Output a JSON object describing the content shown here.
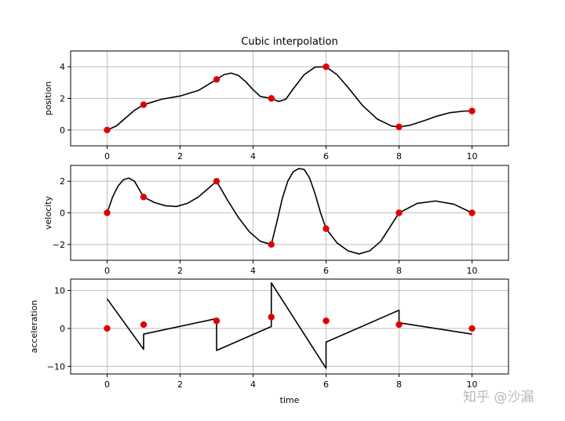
{
  "figure": {
    "title": "Cubic interpolation",
    "watermark": "知乎 @沙漏",
    "colors": {
      "line": "#000000",
      "marker": "#e00000",
      "grid": "#b0b0b0"
    }
  },
  "chart_data": [
    {
      "type": "line",
      "ylabel": "position",
      "xlim": [
        -1,
        11
      ],
      "ylim": [
        -1,
        5
      ],
      "xticks": [
        0,
        2,
        4,
        6,
        8,
        10
      ],
      "yticks": [
        0,
        2,
        4
      ],
      "grid": true,
      "points": {
        "x": [
          0,
          1,
          3,
          4.5,
          6,
          8,
          10
        ],
        "y": [
          0,
          1.6,
          3.2,
          2.0,
          4.0,
          0.2,
          1.2
        ]
      },
      "curve": {
        "x": [
          0,
          0.25,
          0.5,
          0.75,
          1,
          1.5,
          2,
          2.5,
          3,
          3.2,
          3.4,
          3.6,
          3.8,
          4,
          4.2,
          4.5,
          4.7,
          4.9,
          5.1,
          5.4,
          5.7,
          6,
          6.3,
          6.6,
          7,
          7.4,
          7.8,
          8,
          8.3,
          8.7,
          9,
          9.4,
          9.8,
          10
        ],
        "y": [
          0,
          0.25,
          0.75,
          1.25,
          1.6,
          1.95,
          2.15,
          2.5,
          3.2,
          3.5,
          3.6,
          3.45,
          3.05,
          2.55,
          2.12,
          2.0,
          1.8,
          1.95,
          2.6,
          3.5,
          3.98,
          4.0,
          3.5,
          2.7,
          1.55,
          0.7,
          0.25,
          0.2,
          0.3,
          0.6,
          0.85,
          1.1,
          1.2,
          1.2
        ]
      }
    },
    {
      "type": "line",
      "ylabel": "velocity",
      "xlim": [
        -1,
        11
      ],
      "ylim": [
        -3,
        3
      ],
      "xticks": [
        0,
        2,
        4,
        6,
        8,
        10
      ],
      "yticks": [
        -2,
        0,
        2
      ],
      "grid": true,
      "points": {
        "x": [
          0,
          1,
          3,
          4.5,
          6,
          8,
          10
        ],
        "y": [
          0,
          1.0,
          2.0,
          -2.0,
          -1.0,
          0,
          0
        ]
      },
      "curve": {
        "x": [
          0,
          0.15,
          0.3,
          0.45,
          0.6,
          0.75,
          0.9,
          1,
          1.3,
          1.6,
          1.9,
          2.2,
          2.5,
          2.8,
          3,
          3.3,
          3.6,
          3.9,
          4.2,
          4.5,
          4.65,
          4.8,
          4.95,
          5.1,
          5.25,
          5.4,
          5.55,
          5.7,
          5.85,
          6,
          6.3,
          6.6,
          6.9,
          7.2,
          7.5,
          8,
          8.5,
          9,
          9.5,
          10
        ],
        "y": [
          0,
          1.0,
          1.7,
          2.1,
          2.2,
          2.0,
          1.4,
          1.0,
          0.65,
          0.45,
          0.4,
          0.6,
          1.0,
          1.6,
          2.0,
          0.8,
          -0.3,
          -1.2,
          -1.8,
          -2.0,
          -0.6,
          0.9,
          2.0,
          2.6,
          2.8,
          2.75,
          2.2,
          1.2,
          0,
          -1.0,
          -1.9,
          -2.4,
          -2.6,
          -2.4,
          -1.8,
          0,
          0.6,
          0.75,
          0.55,
          0
        ]
      }
    },
    {
      "type": "line",
      "ylabel": "acceleration",
      "xlabel": "time",
      "xlim": [
        -1,
        11
      ],
      "ylim": [
        -12,
        13
      ],
      "xticks": [
        0,
        2,
        4,
        6,
        8,
        10
      ],
      "yticks": [
        -10,
        0,
        10
      ],
      "grid": true,
      "points": {
        "x": [
          0,
          1,
          3,
          4.5,
          6,
          8,
          10
        ],
        "y": [
          0,
          1.0,
          2.0,
          3.0,
          2.0,
          1.0,
          0
        ]
      },
      "curve": {
        "x": [
          0,
          1,
          1,
          3,
          3,
          4.5,
          4.5,
          6,
          6,
          8,
          8,
          10
        ],
        "y": [
          7.8,
          -5.5,
          -1.5,
          2.6,
          -5.8,
          0.5,
          12.0,
          -10.5,
          -3.6,
          4.8,
          1.5,
          -1.5
        ]
      }
    }
  ]
}
